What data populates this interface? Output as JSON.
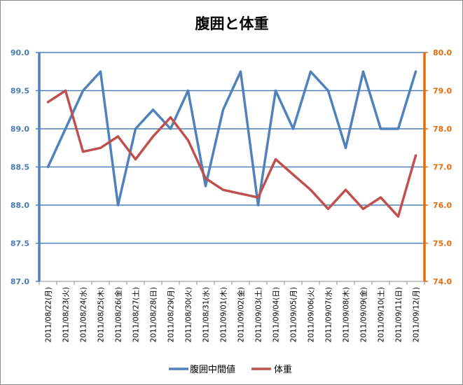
{
  "chart_data": {
    "type": "line",
    "title": "腹囲と体重",
    "categories": [
      "2011/08/22(月)",
      "2011/08/23(火)",
      "2011/08/24(水)",
      "2011/08/25(木)",
      "2011/08/26(金)",
      "2011/08/27(土)",
      "2011/08/28(日)",
      "2011/08/29(月)",
      "2011/08/30(火)",
      "2011/08/31(水)",
      "2011/09/01(木)",
      "2011/09/02(金)",
      "2011/09/03(土)",
      "2011/09/04(日)",
      "2011/09/05(月)",
      "2011/09/06(火)",
      "2011/09/07(水)",
      "2011/09/08(木)",
      "2011/09/09(金)",
      "2011/09/10(土)",
      "2011/09/11(日)",
      "2011/09/12(月)"
    ],
    "series": [
      {
        "name": "腹囲中間値",
        "axis": "left",
        "color": "#4f81bd",
        "values": [
          88.5,
          89.0,
          89.5,
          89.75,
          88.0,
          89.0,
          89.25,
          89.0,
          89.5,
          88.25,
          89.25,
          89.75,
          88.0,
          89.5,
          89.0,
          89.75,
          89.5,
          88.75,
          89.75,
          89.0,
          89.0,
          89.75
        ]
      },
      {
        "name": "体重",
        "axis": "right",
        "color": "#c0504d",
        "values": [
          78.7,
          79.0,
          77.4,
          77.5,
          77.8,
          77.2,
          77.8,
          78.3,
          77.7,
          76.7,
          76.4,
          76.3,
          76.2,
          77.2,
          76.8,
          76.4,
          75.9,
          76.4,
          75.9,
          76.2,
          75.7,
          77.3
        ]
      }
    ],
    "y_left": {
      "min": 87.0,
      "max": 90.0,
      "ticks": [
        "87.0",
        "87.5",
        "88.0",
        "88.5",
        "89.0",
        "89.5",
        "90.0"
      ],
      "color": "#4f81bd"
    },
    "y_right": {
      "min": 74.0,
      "max": 80.0,
      "ticks": [
        "74.0",
        "75.0",
        "76.0",
        "77.0",
        "78.0",
        "79.0",
        "80.0"
      ],
      "color": "#e46c0a"
    },
    "grid": true,
    "legend_position": "bottom"
  }
}
